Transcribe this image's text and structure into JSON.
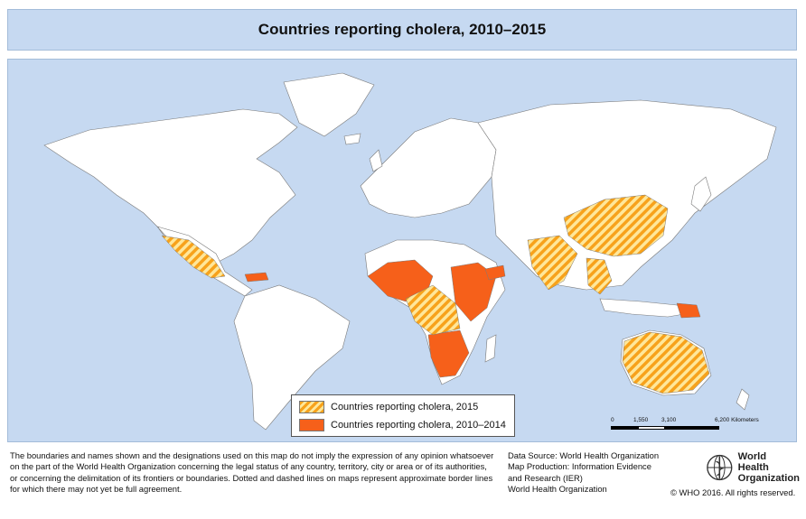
{
  "title": "Countries reporting cholera, 2010–2015",
  "legend": {
    "items": [
      {
        "label": "Countries reporting cholera, 2015",
        "pattern": "hatched",
        "colors": [
          "#f7a21b",
          "#ffe79a"
        ]
      },
      {
        "label": "Countries reporting cholera, 2010–2014",
        "pattern": "solid",
        "colors": [
          "#f6601a"
        ]
      }
    ]
  },
  "scale": {
    "ticks": [
      "0",
      "1,550",
      "3,100",
      "6,200 Kilometers"
    ]
  },
  "disclaimer": {
    "lines": [
      "The boundaries and names shown and the designations used on this map do not imply the expression of any opinion whatsoever",
      "on the part of the World Health Organization concerning the legal status of any country, territory, city or area or of its authorities,",
      "or concerning the delimitation of its frontiers or boundaries. Dotted and dashed lines on maps represent approximate border lines",
      "for which there may not yet be full agreement."
    ]
  },
  "source": {
    "lines": [
      "Data Source: World Health Organization",
      "Map Production: Information Evidence",
      "and Research (IER)",
      "World Health Organization"
    ]
  },
  "logo": {
    "line1": "World Health",
    "line2": "Organization"
  },
  "copyright": "© WHO 2016. All rights reserved.",
  "colors": {
    "ocean": "#c6d9f1",
    "land": "#ffffff",
    "cholera_2015_a": "#f7a21b",
    "cholera_2015_b": "#ffe79a",
    "cholera_2010_2014": "#f6601a"
  }
}
